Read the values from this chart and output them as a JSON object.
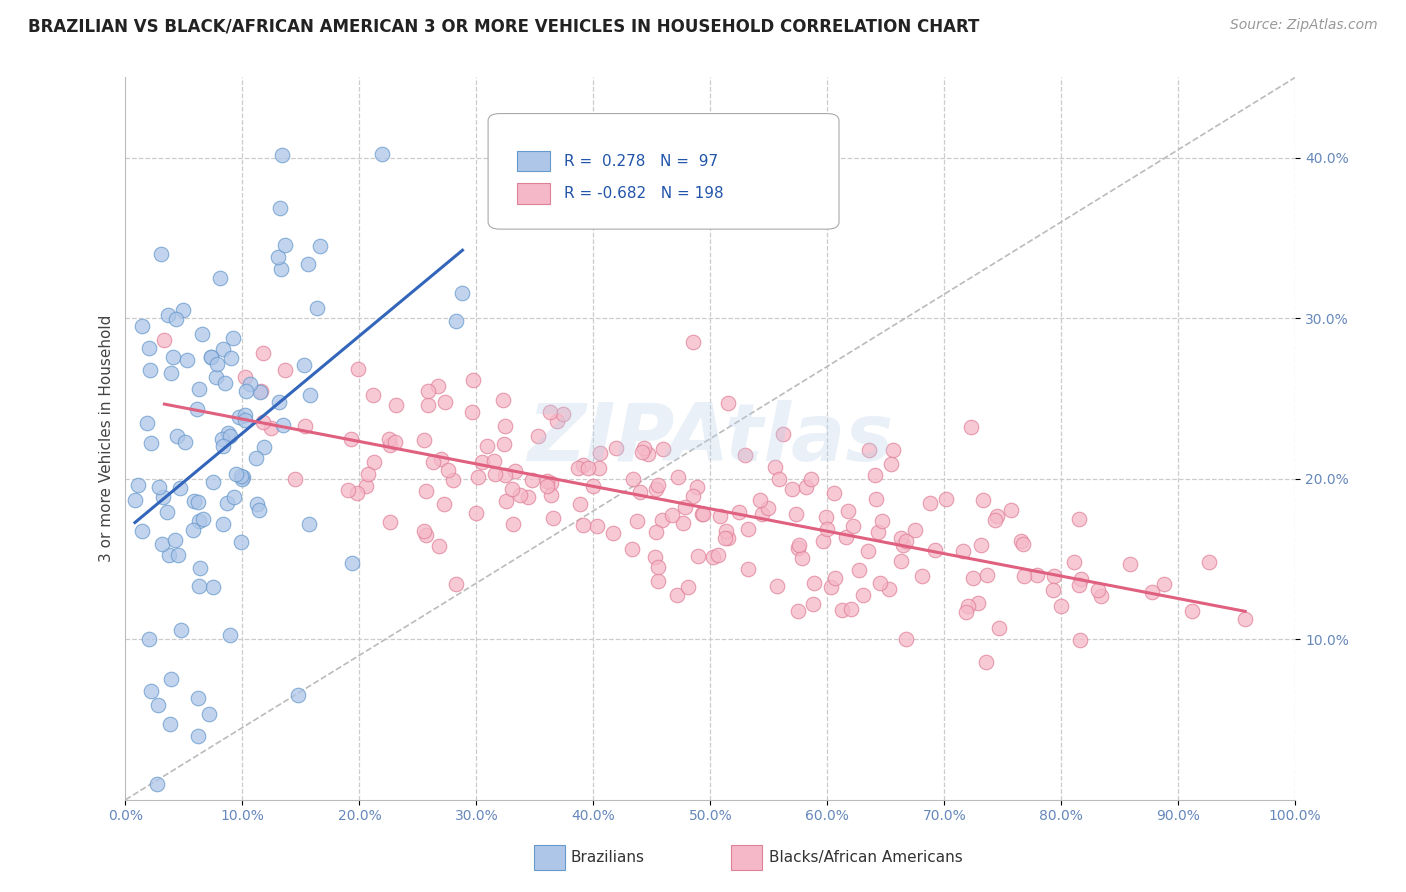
{
  "title": "BRAZILIAN VS BLACK/AFRICAN AMERICAN 3 OR MORE VEHICLES IN HOUSEHOLD CORRELATION CHART",
  "source": "Source: ZipAtlas.com",
  "ylabel": "3 or more Vehicles in Household",
  "xlim": [
    0.0,
    1.0
  ],
  "ylim": [
    0.0,
    0.45
  ],
  "xticks": [
    0.0,
    0.1,
    0.2,
    0.3,
    0.4,
    0.5,
    0.6,
    0.7,
    0.8,
    0.9,
    1.0
  ],
  "xticklabels": [
    "0.0%",
    "10.0%",
    "20.0%",
    "30.0%",
    "40.0%",
    "50.0%",
    "60.0%",
    "70.0%",
    "80.0%",
    "90.0%",
    "100.0%"
  ],
  "yticks": [
    0.1,
    0.2,
    0.3,
    0.4
  ],
  "yticklabels": [
    "10.0%",
    "20.0%",
    "30.0%",
    "40.0%"
  ],
  "blue_R": 0.278,
  "blue_N": 97,
  "pink_R": -0.682,
  "pink_N": 198,
  "blue_color": "#aec6e8",
  "blue_edge": "#6699cc",
  "pink_color": "#f5b8c8",
  "pink_edge": "#e08098",
  "blue_line_color": "#3366bb",
  "pink_line_color": "#e06080",
  "ref_line_color": "#bbbbbb",
  "grid_color": "#cccccc",
  "tick_color": "#6688bb",
  "background_color": "#ffffff",
  "legend_label_blue": "Brazilians",
  "legend_label_pink": "Blacks/African Americans",
  "watermark": "ZIPAtlas",
  "blue_seed": 42,
  "pink_seed": 123
}
